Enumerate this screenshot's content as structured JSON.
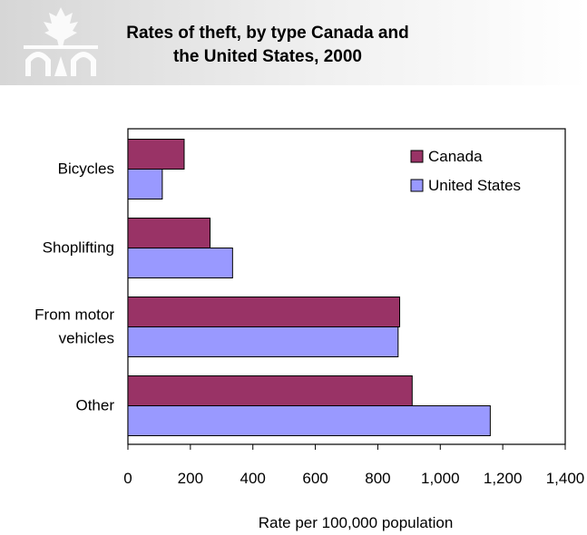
{
  "colors": {
    "canada": "#993366",
    "united_states": "#9999ff",
    "header_gray": "#d6d6d6",
    "logo_white": "#ffffff"
  },
  "header": {
    "logo": "maple-leaf-arches-logo",
    "title_line1": "Rates of theft, by type Canada and",
    "title_line2": "the United States, 2000"
  },
  "chart_data": {
    "type": "bar",
    "orientation": "horizontal",
    "title": "Rates of theft, by type Canada and the United States, 2000",
    "categories": [
      "Bicycles",
      "Shoplifting",
      "From motor vehicles",
      "Other"
    ],
    "category_labels": [
      [
        "Bicycles"
      ],
      [
        "Shoplifting"
      ],
      [
        "From motor",
        "vehicles"
      ],
      [
        "Other"
      ]
    ],
    "series": [
      {
        "name": "Canada",
        "values": [
          180,
          263,
          870,
          910
        ]
      },
      {
        "name": "United States",
        "values": [
          110,
          335,
          865,
          1160
        ]
      }
    ],
    "xlabel": "Rate per 100,000 population",
    "ylabel": "",
    "xlim": [
      0,
      1400
    ],
    "xticks": [
      0,
      200,
      400,
      600,
      800,
      1000,
      1200,
      1400
    ],
    "xtick_labels": [
      "0",
      "200",
      "400",
      "600",
      "800",
      "1,000",
      "1,200",
      "1,400"
    ],
    "grid": false,
    "legend_position": "top-right"
  }
}
